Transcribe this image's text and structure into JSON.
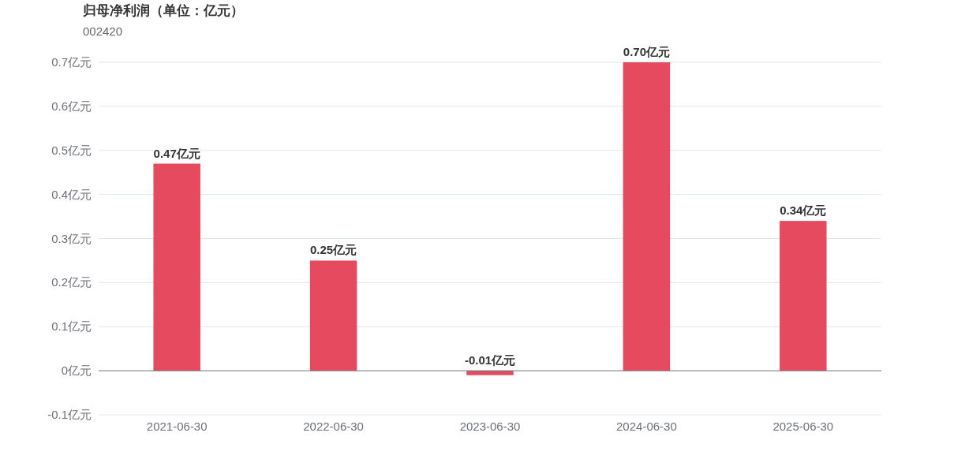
{
  "chart_data": {
    "type": "bar",
    "title": "归母净利润（单位：亿元）",
    "subtitle": "002420",
    "categories": [
      "2021-06-30",
      "2022-06-30",
      "2023-06-30",
      "2024-06-30",
      "2025-06-30"
    ],
    "values": [
      0.47,
      0.25,
      -0.01,
      0.7,
      0.34
    ],
    "value_labels": [
      "0.47亿元",
      "0.25亿元",
      "-0.01亿元",
      "0.70亿元",
      "0.34亿元"
    ],
    "color": "#e64a5f",
    "ylim": [
      -0.1,
      0.7
    ],
    "yticks": [
      {
        "value": -0.1,
        "label": "-0.1亿元"
      },
      {
        "value": 0,
        "label": "0亿元"
      },
      {
        "value": 0.1,
        "label": "0.1亿元"
      },
      {
        "value": 0.2,
        "label": "0.2亿元"
      },
      {
        "value": 0.3,
        "label": "0.3亿元"
      },
      {
        "value": 0.4,
        "label": "0.4亿元"
      },
      {
        "value": 0.5,
        "label": "0.5亿元"
      },
      {
        "value": 0.6,
        "label": "0.6亿元"
      },
      {
        "value": 0.7,
        "label": "0.7亿元"
      }
    ],
    "grid": "y"
  }
}
